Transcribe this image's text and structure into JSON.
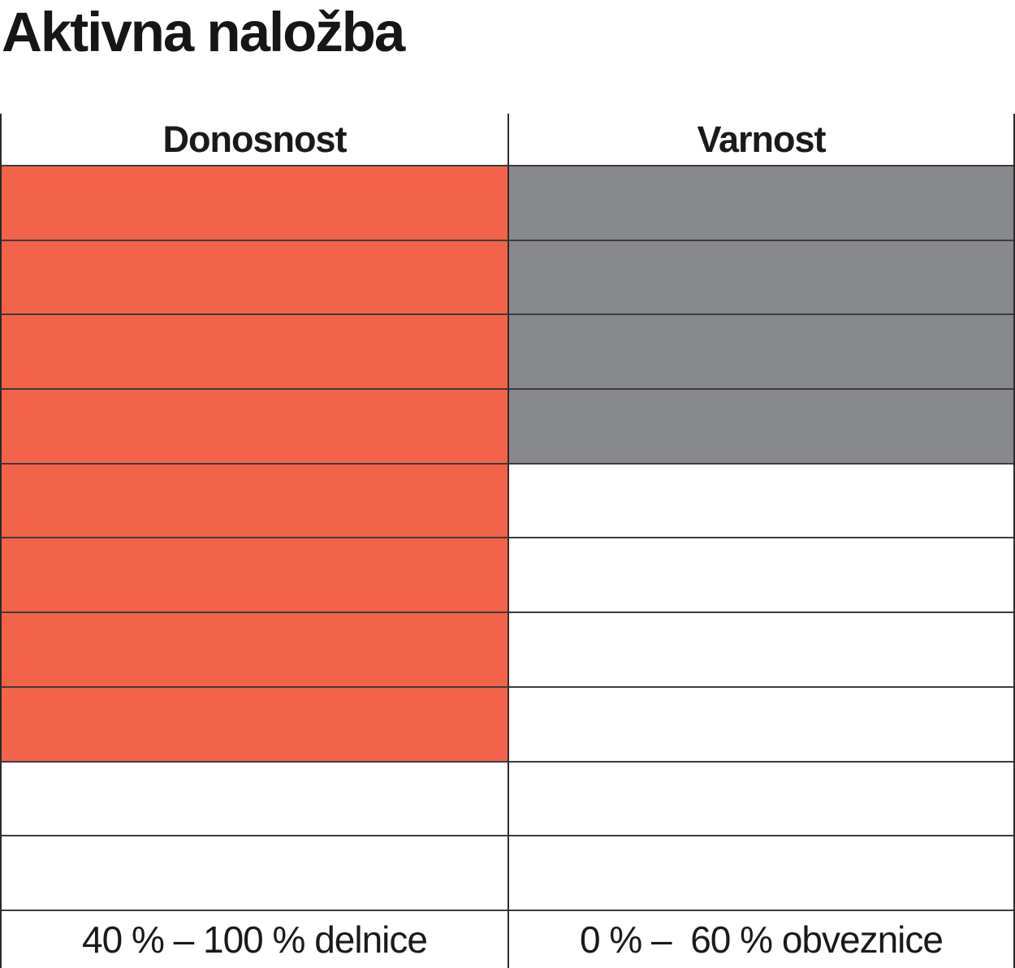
{
  "page": {
    "title": "Aktivna naložba"
  },
  "chart_data": {
    "type": "table",
    "title": "Aktivna naložba",
    "description_of_visual": "Two-column rating grid of 10 rows each; cells are filled from the top down",
    "rows_total": 10,
    "columns": [
      {
        "label": "Donosnost",
        "filled_rows": 8,
        "fill_color": "#F3634A",
        "footer": "40 % – 100 % delnice"
      },
      {
        "label": "Varnost",
        "filled_rows": 4,
        "fill_color": "#87898C",
        "footer": "0 % –  60 % obveznice"
      }
    ],
    "layout": {
      "fill_direction": "top",
      "grid_lines": true,
      "line_color": "#3C3C3B",
      "background": "#FFFFFF"
    }
  }
}
